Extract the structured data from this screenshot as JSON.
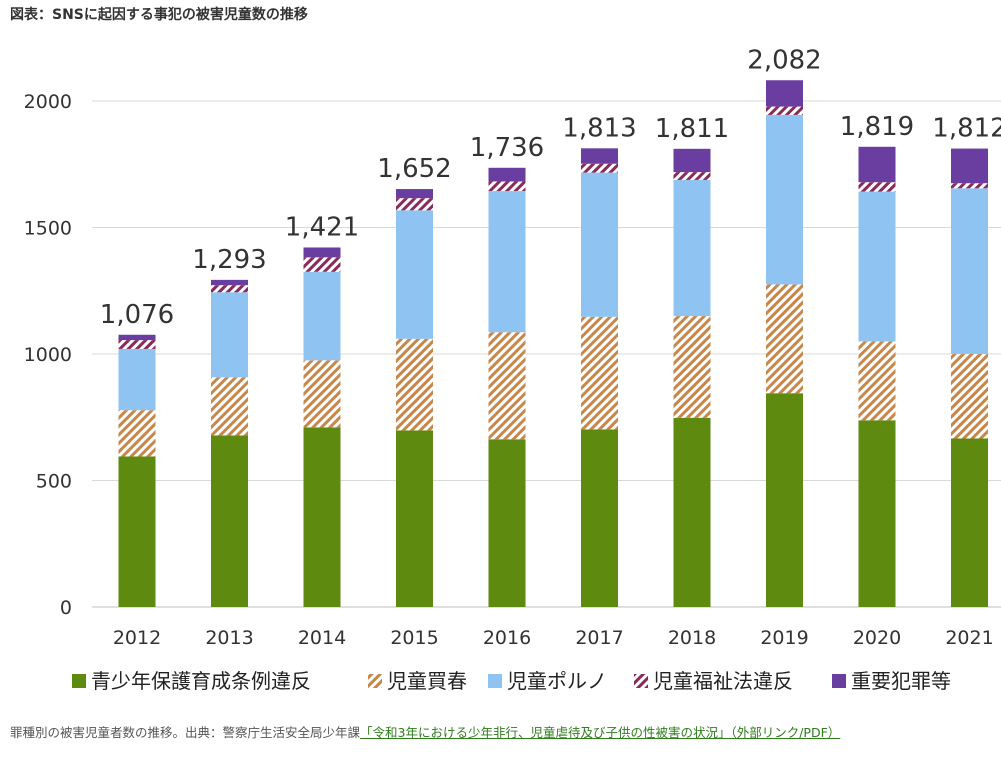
{
  "title": "図表：SNSに起因する事犯の被害児童数の推移",
  "caption": {
    "text": "罪種別の被害児童者数の推移。出典：警察庁生活安全局少年課",
    "link_text": "「令和3年における少年非行、児童虐待及び子供の性被害の状況」（外部リンク/PDF）"
  },
  "chart_data": {
    "type": "bar",
    "stacked": true,
    "categories": [
      "2012",
      "2013",
      "2014",
      "2015",
      "2016",
      "2017",
      "2018",
      "2019",
      "2020",
      "2021"
    ],
    "totals": [
      1076,
      1293,
      1421,
      1652,
      1736,
      1813,
      1811,
      2082,
      1819,
      1812
    ],
    "total_labels": [
      "1,076",
      "1,293",
      "1,421",
      "1,652",
      "1,736",
      "1,813",
      "1,811",
      "2,082",
      "1,819",
      "1,812"
    ],
    "ylim": [
      0,
      2000
    ],
    "yticks": [
      0,
      500,
      1000,
      1500,
      2000
    ],
    "grid": true,
    "legend_position": "bottom",
    "series": [
      {
        "name": "青少年保護育成条例違反",
        "color": "#5e8a0f",
        "pattern": "solid",
        "values": [
          595,
          678,
          710,
          698,
          663,
          702,
          748,
          845,
          738,
          666
        ]
      },
      {
        "name": "児童買春",
        "color": "#c8874a",
        "pattern": "hatch",
        "values": [
          183,
          230,
          265,
          362,
          423,
          445,
          402,
          430,
          312,
          334
        ]
      },
      {
        "name": "児童ポルノ",
        "color": "#8fc3f2",
        "pattern": "solid",
        "values": [
          242,
          336,
          350,
          508,
          558,
          570,
          538,
          670,
          592,
          655
        ]
      },
      {
        "name": "児童福祉法違反",
        "color": "#8a2a5a",
        "pattern": "hatch",
        "values": [
          35,
          28,
          57,
          48,
          38,
          35,
          31,
          33,
          37,
          20
        ]
      },
      {
        "name": "重要犯罪等",
        "color": "#6a3ea0",
        "pattern": "solid",
        "values": [
          21,
          21,
          39,
          36,
          54,
          61,
          92,
          104,
          140,
          137
        ]
      }
    ]
  }
}
